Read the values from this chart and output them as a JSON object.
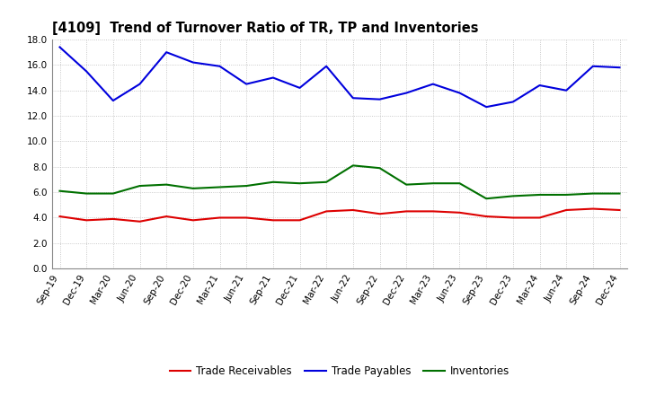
{
  "title": "[4109]  Trend of Turnover Ratio of TR, TP and Inventories",
  "x_labels": [
    "Sep-19",
    "Dec-19",
    "Mar-20",
    "Jun-20",
    "Sep-20",
    "Dec-20",
    "Mar-21",
    "Jun-21",
    "Sep-21",
    "Dec-21",
    "Mar-22",
    "Jun-22",
    "Sep-22",
    "Dec-22",
    "Mar-23",
    "Jun-23",
    "Sep-23",
    "Dec-23",
    "Mar-24",
    "Jun-24",
    "Sep-24",
    "Dec-24"
  ],
  "trade_receivables": [
    4.1,
    3.8,
    3.9,
    3.7,
    4.1,
    3.8,
    4.0,
    4.0,
    3.8,
    3.8,
    4.5,
    4.6,
    4.3,
    4.5,
    4.5,
    4.4,
    4.1,
    4.0,
    4.0,
    4.6,
    4.7,
    4.6
  ],
  "trade_payables": [
    17.4,
    15.5,
    13.2,
    14.5,
    17.0,
    16.2,
    15.9,
    14.5,
    15.0,
    14.2,
    15.9,
    13.4,
    13.3,
    13.8,
    14.5,
    13.8,
    12.7,
    13.1,
    14.4,
    14.0,
    15.9,
    15.8
  ],
  "inventories": [
    6.1,
    5.9,
    5.9,
    6.5,
    6.6,
    6.3,
    6.4,
    6.5,
    6.8,
    6.7,
    6.8,
    8.1,
    7.9,
    6.6,
    6.7,
    6.7,
    5.5,
    5.7,
    5.8,
    5.8,
    5.9,
    5.9
  ],
  "tr_color": "#dd0000",
  "tp_color": "#0000dd",
  "inv_color": "#007000",
  "background_color": "#ffffff",
  "grid_color": "#bbbbbb",
  "ylim": [
    0.0,
    18.0
  ],
  "yticks": [
    0.0,
    2.0,
    4.0,
    6.0,
    8.0,
    10.0,
    12.0,
    14.0,
    16.0,
    18.0
  ],
  "legend_labels": [
    "Trade Receivables",
    "Trade Payables",
    "Inventories"
  ],
  "line_width": 1.5,
  "title_fontsize": 10.5,
  "tick_fontsize": 7.5,
  "legend_fontsize": 8.5
}
